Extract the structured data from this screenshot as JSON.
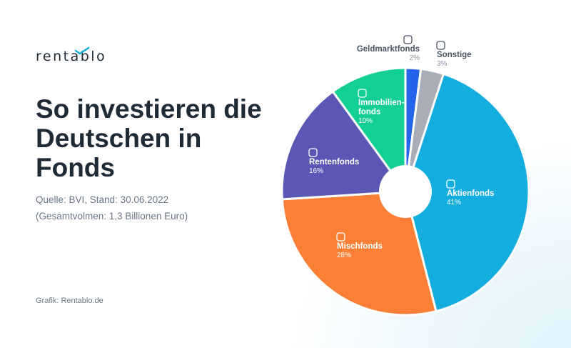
{
  "brand": {
    "logo_text": "rentablo"
  },
  "title": "So investieren die Deutschen in Fonds",
  "source_line1": "Quelle: BVI, Stand: 30.06.2022",
  "source_line2": "(Gesamtvolmen: 1,3 Billionen Euro)",
  "credit": "Grafik: Rentablo.de",
  "chart_data": {
    "type": "pie",
    "style": "donut",
    "start": "top, clockwise",
    "categories": [
      "Geldmarktfonds",
      "Sonstige",
      "Aktienfonds",
      "Mischfonds",
      "Rentenfonds",
      "Immobilienfonds"
    ],
    "values": [
      2,
      3,
      41,
      28,
      16,
      10
    ],
    "labels": [
      "Geldmarktfonds",
      "Sonstige",
      "Aktienfonds",
      "Mischfonds",
      "Rentenfonds",
      "Immobilien-\nfonds"
    ],
    "value_labels": [
      "2%",
      "3%",
      "41%",
      "28%",
      "16%",
      "10%"
    ],
    "colors": [
      "#2563eb",
      "#a8adb7",
      "#13ade0",
      "#fb8036",
      "#5b57b5",
      "#12cf94"
    ],
    "icons": [
      "bank-exchange-icon",
      "coin-icon",
      "chart-line-icon",
      "dollar-coin-icon",
      "inbox-download-icon",
      "building-icon"
    ]
  }
}
